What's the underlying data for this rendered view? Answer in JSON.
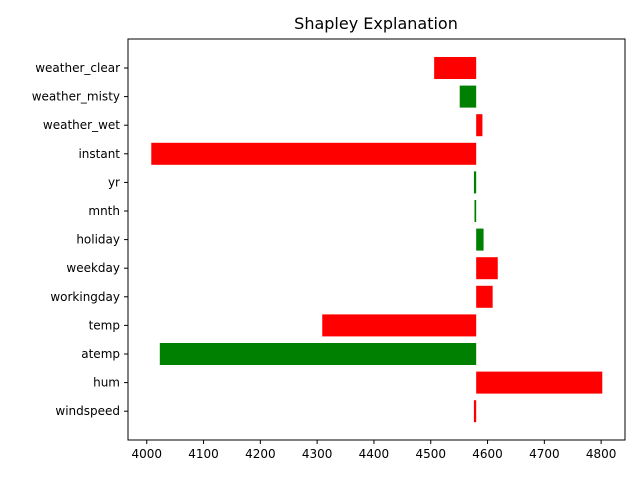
{
  "chart_data": {
    "type": "bar",
    "orientation": "horizontal",
    "title": "Shapley Explanation",
    "xlabel": "",
    "ylabel": "",
    "xlim": [
      3967,
      4842
    ],
    "baseline": 4580,
    "grid": false,
    "legend": "none",
    "x_ticks": [
      "4000",
      "4100",
      "4200",
      "4300",
      "4400",
      "4500",
      "4600",
      "4700",
      "4800"
    ],
    "categories": [
      "weather_clear",
      "weather_misty",
      "weather_wet",
      "instant",
      "yr",
      "mnth",
      "holiday",
      "weekday",
      "workingday",
      "temp",
      "atemp",
      "hum",
      "windspeed"
    ],
    "bars": [
      {
        "label": "weather_clear",
        "start": 4580,
        "end": 4506,
        "color": "#ff0000"
      },
      {
        "label": "weather_misty",
        "start": 4580,
        "end": 4551,
        "color": "#008000"
      },
      {
        "label": "weather_wet",
        "start": 4580,
        "end": 4591,
        "color": "#ff0000"
      },
      {
        "label": "instant",
        "start": 4580,
        "end": 4008,
        "color": "#ff0000"
      },
      {
        "label": "yr",
        "start": 4580,
        "end": 4576,
        "color": "#008000"
      },
      {
        "label": "mnth",
        "start": 4580,
        "end": 4577,
        "color": "#008000"
      },
      {
        "label": "holiday",
        "start": 4580,
        "end": 4593,
        "color": "#008000"
      },
      {
        "label": "weekday",
        "start": 4580,
        "end": 4618,
        "color": "#ff0000"
      },
      {
        "label": "workingday",
        "start": 4580,
        "end": 4609,
        "color": "#ff0000"
      },
      {
        "label": "temp",
        "start": 4580,
        "end": 4309,
        "color": "#ff0000"
      },
      {
        "label": "atemp",
        "start": 4580,
        "end": 4023,
        "color": "#008000"
      },
      {
        "label": "hum",
        "start": 4580,
        "end": 4802,
        "color": "#ff0000"
      },
      {
        "label": "windspeed",
        "start": 4580,
        "end": 4576,
        "color": "#ff0000"
      }
    ]
  }
}
